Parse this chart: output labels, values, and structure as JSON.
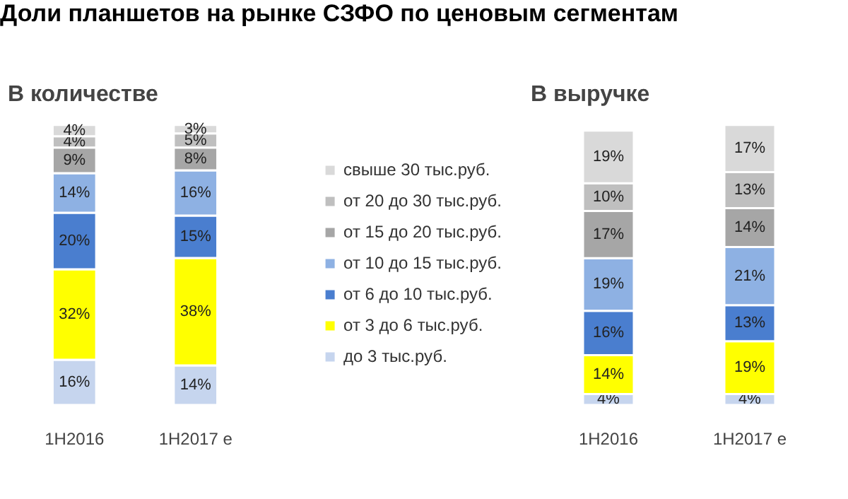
{
  "chart_data": [
    {
      "type": "bar",
      "title": "Доли планшетов на рынке СЗФО по ценовым сегментам",
      "subtitle": "В количестве",
      "stacked": true,
      "legend": "right",
      "categories": [
        "1H2016",
        "1H2017 e"
      ],
      "series": [
        {
          "name": "до 3 тыс.руб.",
          "color": "#c6d5ee",
          "values": [
            16,
            14
          ],
          "value_labels": [
            "16%",
            "14%"
          ]
        },
        {
          "name": "от 3 до 6 тыс.руб.",
          "color": "#ffff00",
          "values": [
            32,
            38
          ],
          "value_labels": [
            "32%",
            "38%"
          ]
        },
        {
          "name": "от 6 до 10 тыс.руб.",
          "color": "#4a7ecf",
          "values": [
            20,
            15
          ],
          "value_labels": [
            "20%",
            "15%"
          ]
        },
        {
          "name": "от 10 до 15 тыс.руб.",
          "color": "#8eb1e3",
          "values": [
            14,
            16
          ],
          "value_labels": [
            "14%",
            "16%"
          ]
        },
        {
          "name": "от 15 до 20 тыс.руб.",
          "color": "#a6a6a6",
          "values": [
            9,
            8
          ],
          "value_labels": [
            "9%",
            "8%"
          ]
        },
        {
          "name": "от 20 до 30 тыс.руб.",
          "color": "#bfbfbf",
          "values": [
            4,
            5
          ],
          "value_labels": [
            "4%",
            "5%"
          ]
        },
        {
          "name": "свыше 30 тыс.руб.",
          "color": "#d9d9d9",
          "values": [
            4,
            3
          ],
          "value_labels": [
            "4%",
            "3%"
          ]
        }
      ]
    },
    {
      "type": "bar",
      "subtitle": "В выручке",
      "stacked": true,
      "categories": [
        "1H2016",
        "1H2017 e"
      ],
      "series": [
        {
          "color": "#c6d5ee",
          "values": [
            4,
            4
          ],
          "value_labels": [
            "4%",
            "4%"
          ]
        },
        {
          "color": "#ffff00",
          "values": [
            14,
            19
          ],
          "value_labels": [
            "14%",
            "19%"
          ]
        },
        {
          "color": "#4a7ecf",
          "values": [
            16,
            13
          ],
          "value_labels": [
            "16%",
            "13%"
          ]
        },
        {
          "color": "#8eb1e3",
          "values": [
            19,
            21
          ],
          "value_labels": [
            "19%",
            "21%"
          ]
        },
        {
          "color": "#a6a6a6",
          "values": [
            17,
            14
          ],
          "value_labels": [
            "17%",
            "14%"
          ]
        },
        {
          "color": "#bfbfbf",
          "values": [
            10,
            13
          ],
          "value_labels": [
            "10%",
            "13%"
          ]
        },
        {
          "color": "#d9d9d9",
          "values": [
            19,
            17
          ],
          "value_labels": [
            "19%",
            "17%"
          ]
        }
      ]
    }
  ]
}
